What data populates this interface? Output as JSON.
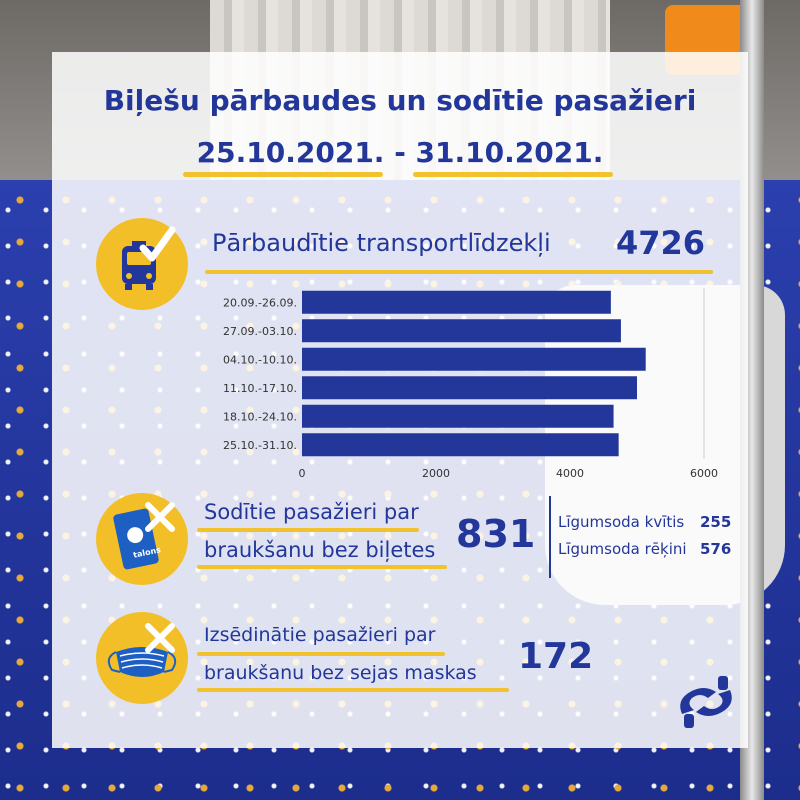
{
  "header": {
    "title": "Biļešu pārbaudes un sodītie pasažieri",
    "period": "25.10.2021. - 31.10.2021."
  },
  "vehicles": {
    "label": "Pārbaudītie transportlīdzekļi",
    "value": "4726",
    "icon": "bus-check-icon"
  },
  "fined": {
    "label_line1": "Sodītie pasažieri par",
    "label_line2": "braukšanu bez biļetes",
    "value": "831",
    "icon": "e-talons-card-cross-icon",
    "card_text": "talons",
    "breakdown": [
      {
        "label": "Līgumsoda kvītis",
        "value": "255"
      },
      {
        "label": "Līgumsoda rēķini",
        "value": "576"
      }
    ]
  },
  "removed": {
    "label_line1": "Izsēdinātie pasažieri par",
    "label_line2": "braukšanu bez sejas maskas",
    "value": "172",
    "icon": "face-mask-cross-icon"
  },
  "colors": {
    "brand_blue": "#23379a",
    "bar_blue": "#23379a",
    "accent_yellow": "#f3bf28"
  },
  "logo": {
    "icon": "rigas-satiksme-logo-icon"
  },
  "chart_data": {
    "type": "bar",
    "orientation": "horizontal",
    "categories": [
      "20.09.-26.09.",
      "27.09.-03.10.",
      "04.10.-10.10.",
      "11.10.-17.10.",
      "18.10.-24.10.",
      "25.10.-31.10."
    ],
    "values": [
      4610,
      4760,
      5130,
      5000,
      4650,
      4726
    ],
    "xlim": [
      0,
      6000
    ],
    "xticks": [
      0,
      2000,
      4000,
      6000
    ],
    "xtick_labels": [
      "0",
      "2000",
      "4000",
      "6000"
    ],
    "grid": false,
    "title": "",
    "xlabel": "",
    "ylabel": ""
  }
}
